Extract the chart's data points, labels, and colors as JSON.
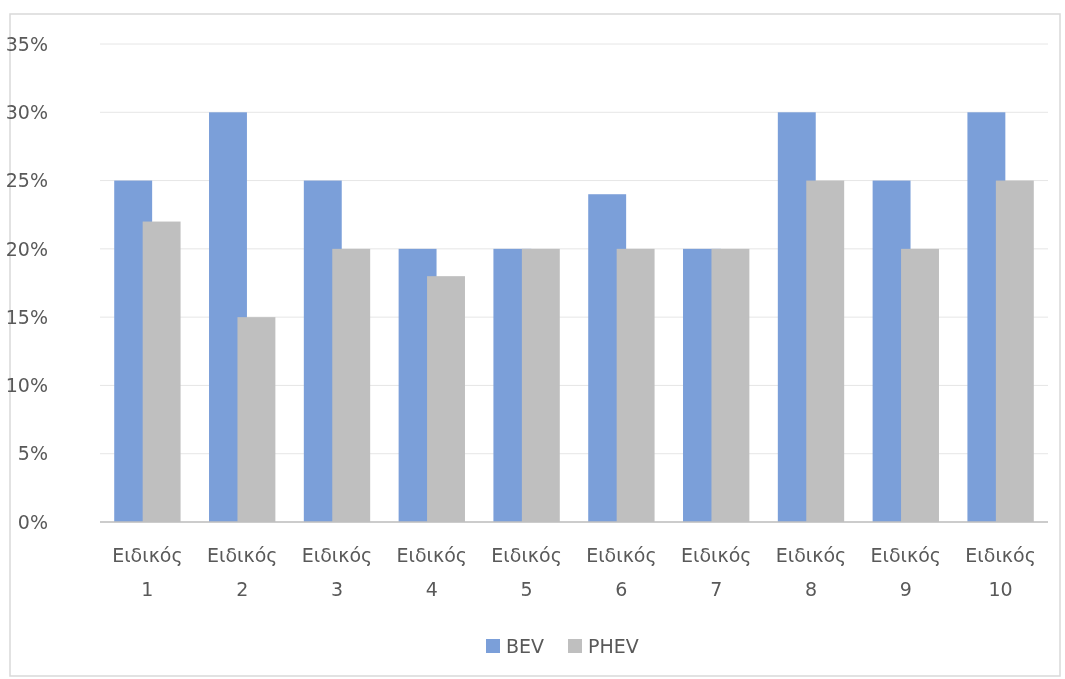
{
  "chart_data": {
    "type": "bar",
    "categories": [
      "Ειδικός 1",
      "Ειδικός 2",
      "Ειδικός 3",
      "Ειδικός 4",
      "Ειδικός 5",
      "Ειδικός 6",
      "Ειδικός 7",
      "Ειδικός 8",
      "Ειδικός 9",
      "Ειδικός 10"
    ],
    "series": [
      {
        "name": "BEV",
        "color": "#7b9fd9",
        "values": [
          25,
          30,
          25,
          20,
          20,
          24,
          20,
          30,
          25,
          30
        ]
      },
      {
        "name": "PHEV",
        "color": "#bfbfbf",
        "values": [
          22,
          15,
          20,
          18,
          20,
          20,
          20,
          25,
          20,
          25
        ]
      }
    ],
    "ylim": [
      0,
      35
    ],
    "yticks": [
      {
        "value": 0,
        "label": "0%"
      },
      {
        "value": 5,
        "label": "5%"
      },
      {
        "value": 10,
        "label": "10%"
      },
      {
        "value": 15,
        "label": "15%"
      },
      {
        "value": 20,
        "label": "20%"
      },
      {
        "value": 25,
        "label": "25%"
      },
      {
        "value": 30,
        "label": "30%"
      },
      {
        "value": 35,
        "label": "35%"
      }
    ],
    "grid": "y",
    "legend": "bottom"
  }
}
